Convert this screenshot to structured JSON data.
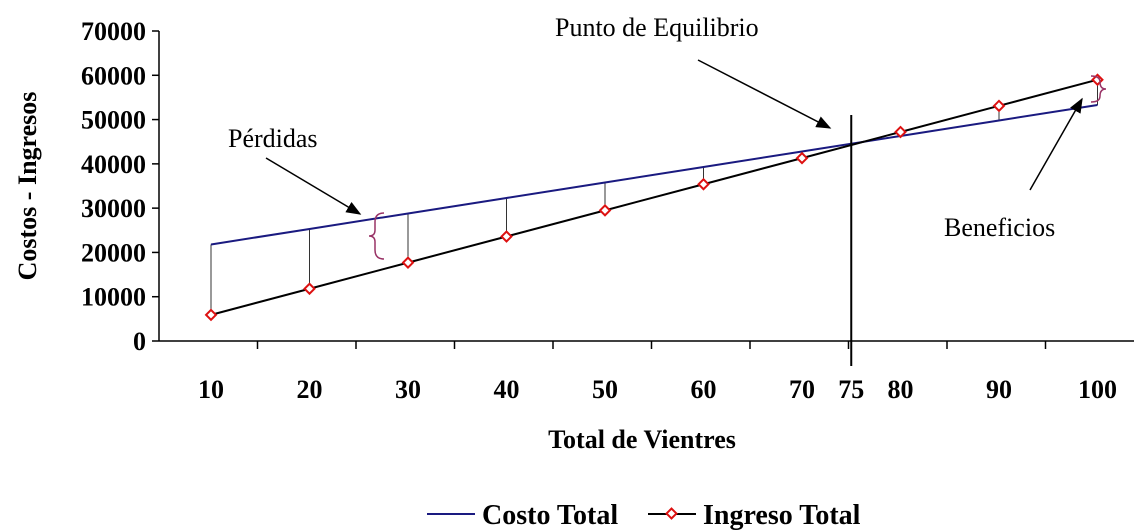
{
  "chart_data": {
    "type": "line",
    "categories": [
      "10",
      "20",
      "30",
      "40",
      "50",
      "60",
      "70",
      "80",
      "90",
      "100"
    ],
    "x": [
      10,
      20,
      30,
      40,
      50,
      60,
      70,
      80,
      90,
      100
    ],
    "series": [
      {
        "name": "Costo Total",
        "color": "#1a1a80",
        "values": [
          21800,
          25300,
          28800,
          32300,
          35800,
          39300,
          42800,
          46300,
          49800,
          53300
        ]
      },
      {
        "name": "Ingreso Total",
        "color": "#000000",
        "marker_color": "#dd1111",
        "values": [
          5900,
          11800,
          17700,
          23600,
          29500,
          35400,
          41300,
          47200,
          53100,
          59000
        ]
      }
    ],
    "breakeven": {
      "x": 75,
      "label": "75"
    },
    "ylim": [
      0,
      70000
    ],
    "y_ticks": [
      "0",
      "10000",
      "20000",
      "30000",
      "40000",
      "50000",
      "60000",
      "70000"
    ],
    "xlabel": "Total de Vientres",
    "ylabel": "Costos - Ingresos",
    "annotations": {
      "breakeven": "Punto de Equilibrio",
      "losses": "Pérdidas",
      "profits": "Beneficios"
    },
    "legend_position": "bottom",
    "grid": false
  }
}
